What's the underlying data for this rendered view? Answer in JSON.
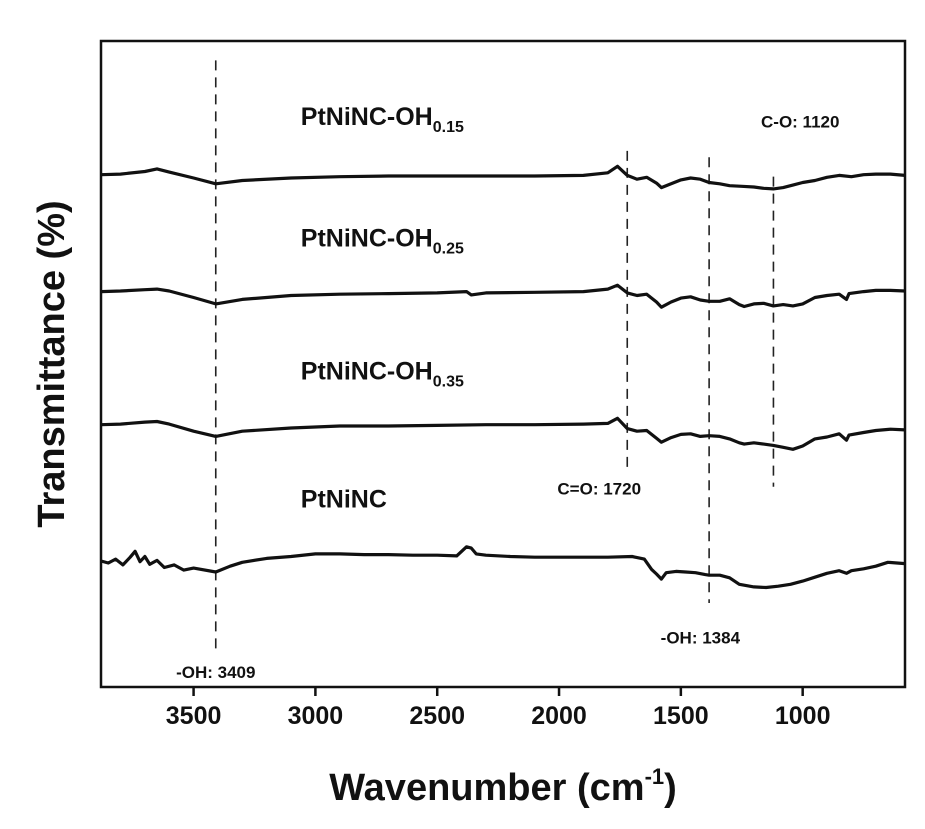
{
  "chart_data": {
    "type": "line",
    "title": "",
    "xlabel": "Wavenumber (cm",
    "xlabel_sup": "-1",
    "xlabel_close": ")",
    "ylabel": "Transmittance (%)",
    "xlim": [
      3880,
      580
    ],
    "x_reversed": true,
    "x_ticks": [
      {
        "value": 3500,
        "label": "3500"
      },
      {
        "value": 3000,
        "label": "3000"
      },
      {
        "value": 2500,
        "label": "2500"
      },
      {
        "value": 2000,
        "label": "2000"
      },
      {
        "value": 1500,
        "label": "1500"
      },
      {
        "value": 1000,
        "label": "1000"
      }
    ],
    "y_ticks_shown": false,
    "ylim": [
      0,
      100
    ],
    "series": [
      {
        "name": "PtNiNC-OH0.15",
        "label_main": "PtNiNC-OH",
        "label_sub": "0.15",
        "label_at": [
          3060,
          87
        ],
        "points": [
          [
            3880,
            79.3
          ],
          [
            3800,
            79.4
          ],
          [
            3700,
            79.8
          ],
          [
            3650,
            80.2
          ],
          [
            3600,
            79.7
          ],
          [
            3500,
            78.8
          ],
          [
            3409,
            77.9
          ],
          [
            3300,
            78.4
          ],
          [
            3100,
            78.8
          ],
          [
            2900,
            79.0
          ],
          [
            2700,
            79.1
          ],
          [
            2500,
            79.1
          ],
          [
            2300,
            79.1
          ],
          [
            2100,
            79.1
          ],
          [
            1900,
            79.2
          ],
          [
            1800,
            79.6
          ],
          [
            1760,
            80.6
          ],
          [
            1720,
            79.2
          ],
          [
            1680,
            78.6
          ],
          [
            1640,
            78.9
          ],
          [
            1600,
            78.0
          ],
          [
            1580,
            77.3
          ],
          [
            1540,
            77.9
          ],
          [
            1500,
            78.5
          ],
          [
            1460,
            78.8
          ],
          [
            1420,
            78.6
          ],
          [
            1384,
            78.1
          ],
          [
            1340,
            77.9
          ],
          [
            1300,
            77.6
          ],
          [
            1250,
            77.5
          ],
          [
            1200,
            77.4
          ],
          [
            1160,
            77.2
          ],
          [
            1120,
            77.1
          ],
          [
            1080,
            77.3
          ],
          [
            1040,
            77.7
          ],
          [
            1000,
            78.1
          ],
          [
            950,
            78.4
          ],
          [
            900,
            78.9
          ],
          [
            850,
            79.2
          ],
          [
            800,
            79.0
          ],
          [
            750,
            79.3
          ],
          [
            700,
            79.4
          ],
          [
            640,
            79.4
          ],
          [
            580,
            79.2
          ]
        ]
      },
      {
        "name": "PtNiNC-OH0.25",
        "label_main": "PtNiNC-OH",
        "label_sub": "0.25",
        "label_at": [
          3060,
          68.2
        ],
        "points": [
          [
            3880,
            61.2
          ],
          [
            3800,
            61.3
          ],
          [
            3700,
            61.5
          ],
          [
            3650,
            61.6
          ],
          [
            3600,
            61.3
          ],
          [
            3500,
            60.3
          ],
          [
            3409,
            59.3
          ],
          [
            3300,
            60.0
          ],
          [
            3100,
            60.6
          ],
          [
            2900,
            60.8
          ],
          [
            2700,
            60.9
          ],
          [
            2500,
            61.0
          ],
          [
            2380,
            61.2
          ],
          [
            2360,
            60.7
          ],
          [
            2300,
            61.0
          ],
          [
            2100,
            61.1
          ],
          [
            1900,
            61.2
          ],
          [
            1800,
            61.6
          ],
          [
            1760,
            62.2
          ],
          [
            1720,
            61.0
          ],
          [
            1680,
            60.6
          ],
          [
            1640,
            60.8
          ],
          [
            1600,
            59.6
          ],
          [
            1580,
            58.8
          ],
          [
            1540,
            59.6
          ],
          [
            1500,
            60.2
          ],
          [
            1460,
            60.4
          ],
          [
            1420,
            59.9
          ],
          [
            1384,
            59.7
          ],
          [
            1340,
            59.7
          ],
          [
            1300,
            60.1
          ],
          [
            1260,
            59.2
          ],
          [
            1240,
            58.9
          ],
          [
            1200,
            59.3
          ],
          [
            1160,
            59.4
          ],
          [
            1120,
            59.0
          ],
          [
            1080,
            59.2
          ],
          [
            1040,
            59.0
          ],
          [
            1000,
            59.3
          ],
          [
            950,
            60.3
          ],
          [
            900,
            60.6
          ],
          [
            850,
            60.8
          ],
          [
            820,
            60.0
          ],
          [
            810,
            60.9
          ],
          [
            750,
            61.2
          ],
          [
            700,
            61.4
          ],
          [
            640,
            61.4
          ],
          [
            580,
            61.3
          ]
        ]
      },
      {
        "name": "PtNiNC-OH0.35",
        "label_main": "PtNiNC-OH",
        "label_sub": "0.35",
        "label_at": [
          3060,
          47.6
        ],
        "points": [
          [
            3880,
            40.6
          ],
          [
            3800,
            40.7
          ],
          [
            3700,
            41.0
          ],
          [
            3650,
            41.1
          ],
          [
            3600,
            40.7
          ],
          [
            3500,
            39.6
          ],
          [
            3409,
            38.8
          ],
          [
            3300,
            39.6
          ],
          [
            3100,
            40.1
          ],
          [
            2900,
            40.4
          ],
          [
            2700,
            40.4
          ],
          [
            2500,
            40.5
          ],
          [
            2300,
            40.6
          ],
          [
            2100,
            40.6
          ],
          [
            1900,
            40.7
          ],
          [
            1800,
            40.8
          ],
          [
            1760,
            41.6
          ],
          [
            1720,
            40.0
          ],
          [
            1680,
            39.6
          ],
          [
            1640,
            39.7
          ],
          [
            1600,
            38.5
          ],
          [
            1580,
            37.9
          ],
          [
            1540,
            38.6
          ],
          [
            1500,
            39.1
          ],
          [
            1460,
            39.2
          ],
          [
            1420,
            38.8
          ],
          [
            1384,
            38.9
          ],
          [
            1340,
            38.8
          ],
          [
            1300,
            38.4
          ],
          [
            1260,
            37.8
          ],
          [
            1240,
            37.6
          ],
          [
            1200,
            37.8
          ],
          [
            1160,
            37.6
          ],
          [
            1120,
            37.4
          ],
          [
            1080,
            37.1
          ],
          [
            1040,
            36.8
          ],
          [
            1000,
            37.3
          ],
          [
            950,
            38.4
          ],
          [
            900,
            38.7
          ],
          [
            850,
            39.2
          ],
          [
            820,
            38.2
          ],
          [
            810,
            39.0
          ],
          [
            750,
            39.4
          ],
          [
            700,
            39.7
          ],
          [
            640,
            39.9
          ],
          [
            580,
            39.8
          ]
        ]
      },
      {
        "name": "PtNiNC",
        "label_main": "PtNiNC",
        "label_sub": "",
        "label_at": [
          3060,
          27.8
        ],
        "points": [
          [
            3880,
            19.5
          ],
          [
            3850,
            19.2
          ],
          [
            3820,
            19.8
          ],
          [
            3790,
            18.9
          ],
          [
            3760,
            20.1
          ],
          [
            3740,
            21.0
          ],
          [
            3720,
            19.4
          ],
          [
            3700,
            20.2
          ],
          [
            3680,
            19.0
          ],
          [
            3650,
            19.6
          ],
          [
            3620,
            18.5
          ],
          [
            3580,
            18.9
          ],
          [
            3540,
            18.1
          ],
          [
            3500,
            18.4
          ],
          [
            3409,
            17.8
          ],
          [
            3350,
            18.7
          ],
          [
            3300,
            19.3
          ],
          [
            3200,
            19.9
          ],
          [
            3100,
            20.2
          ],
          [
            3000,
            20.6
          ],
          [
            2900,
            20.6
          ],
          [
            2800,
            20.5
          ],
          [
            2700,
            20.5
          ],
          [
            2600,
            20.4
          ],
          [
            2500,
            20.4
          ],
          [
            2420,
            20.3
          ],
          [
            2380,
            21.7
          ],
          [
            2360,
            21.5
          ],
          [
            2340,
            20.6
          ],
          [
            2300,
            20.4
          ],
          [
            2200,
            20.2
          ],
          [
            2100,
            20.1
          ],
          [
            2000,
            20.1
          ],
          [
            1900,
            20.1
          ],
          [
            1800,
            20.1
          ],
          [
            1700,
            20.2
          ],
          [
            1650,
            19.8
          ],
          [
            1620,
            18.2
          ],
          [
            1600,
            17.5
          ],
          [
            1580,
            16.7
          ],
          [
            1560,
            17.7
          ],
          [
            1520,
            17.9
          ],
          [
            1480,
            17.8
          ],
          [
            1440,
            17.7
          ],
          [
            1400,
            17.4
          ],
          [
            1384,
            17.3
          ],
          [
            1340,
            17.3
          ],
          [
            1300,
            16.9
          ],
          [
            1260,
            15.9
          ],
          [
            1200,
            15.5
          ],
          [
            1150,
            15.4
          ],
          [
            1100,
            15.6
          ],
          [
            1050,
            15.9
          ],
          [
            1000,
            16.4
          ],
          [
            950,
            17.0
          ],
          [
            900,
            17.6
          ],
          [
            850,
            18.0
          ],
          [
            820,
            17.6
          ],
          [
            800,
            18.0
          ],
          [
            750,
            18.3
          ],
          [
            700,
            18.7
          ],
          [
            650,
            19.3
          ],
          [
            580,
            19.1
          ]
        ]
      }
    ],
    "reference_lines": [
      {
        "x": 3409,
        "label": "-OH: 3409",
        "y_range": [
          5,
          97
        ],
        "label_at": [
          3409,
          1.4
        ]
      },
      {
        "x": 1720,
        "label": "C=O: 1720",
        "y_range": [
          34,
          83
        ],
        "label_at": [
          1835,
          29.8
        ]
      },
      {
        "x": 1384,
        "label": "-OH: 1384",
        "y_range": [
          13,
          82
        ],
        "label_at": [
          1420,
          6.7
        ]
      },
      {
        "x": 1120,
        "label": "C-O: 1120",
        "y_range": [
          31,
          79
        ],
        "label_at": [
          1010,
          86.6
        ]
      }
    ]
  }
}
